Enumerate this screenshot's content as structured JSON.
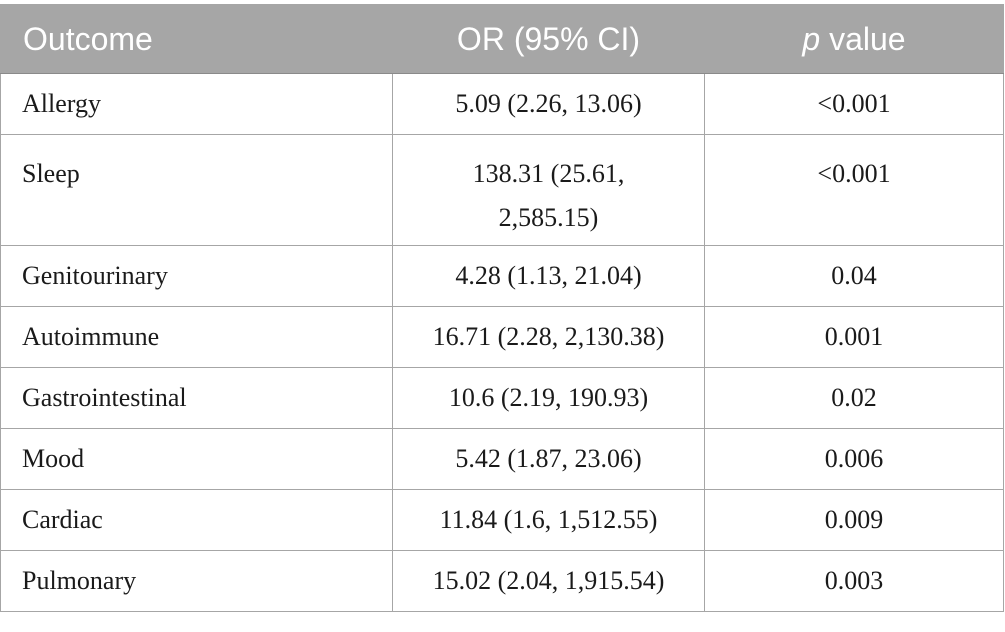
{
  "table": {
    "headers": {
      "outcome": "Outcome",
      "or": "OR (95% CI)",
      "p_italic": "p",
      "p_rest": " value"
    },
    "rows": [
      {
        "outcome": "Allergy",
        "or": "5.09 (2.26, 13.06)",
        "p": "<0.001"
      },
      {
        "outcome": "Sleep",
        "or_line1": "138.31 (25.61,",
        "or_line2": "2,585.15)",
        "p": "<0.001"
      },
      {
        "outcome": "Genitourinary",
        "or": "4.28 (1.13, 21.04)",
        "p": "0.04"
      },
      {
        "outcome": "Autoimmune",
        "or": "16.71 (2.28, 2,130.38)",
        "p": "0.001"
      },
      {
        "outcome": "Gastrointestinal",
        "or": "10.6 (2.19, 190.93)",
        "p": "0.02"
      },
      {
        "outcome": "Mood",
        "or": "5.42 (1.87, 23.06)",
        "p": "0.006"
      },
      {
        "outcome": "Cardiac",
        "or": "11.84 (1.6, 1,512.55)",
        "p": "0.009"
      },
      {
        "outcome": "Pulmonary",
        "or": "15.02 (2.04, 1,915.54)",
        "p": "0.003"
      }
    ]
  }
}
